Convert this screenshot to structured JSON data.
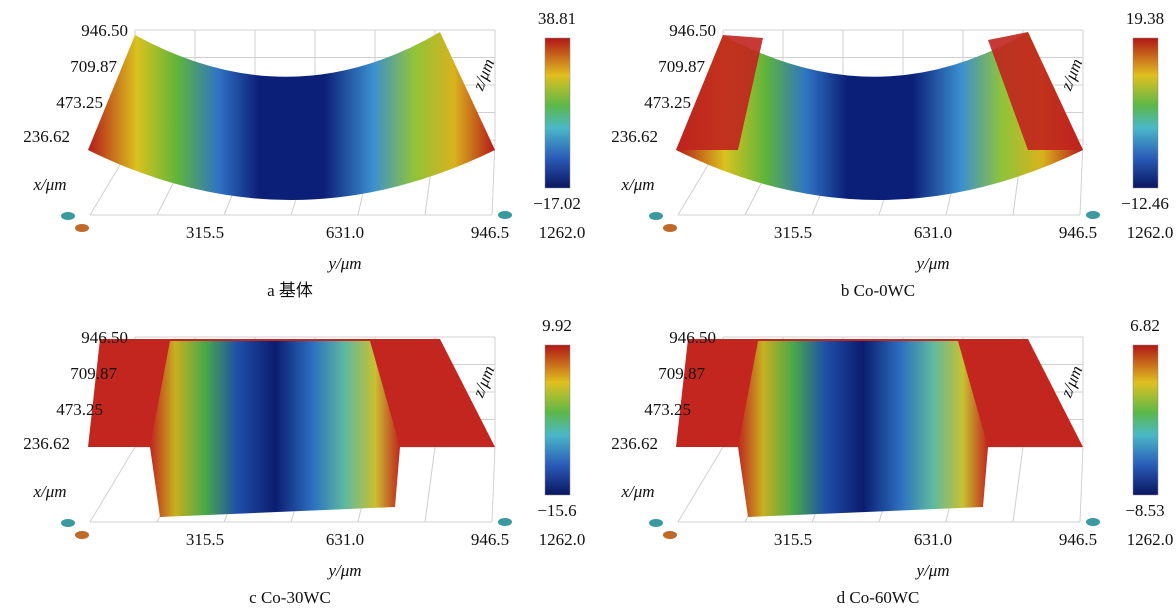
{
  "panels": [
    {
      "caption": "a 基体",
      "x_ticks": [
        "946.50",
        "709.87",
        "473.25",
        "236.62"
      ],
      "x_label": "x/μm",
      "y_ticks": [
        "315.5",
        "631.0",
        "946.5",
        "1262.0"
      ],
      "y_label": "y/μm",
      "z_label": "z/μm",
      "colorbar": {
        "max": "38.81",
        "min": "−17.02"
      }
    },
    {
      "caption": "b Co-0WC",
      "x_ticks": [
        "946.50",
        "709.87",
        "473.25",
        "236.62"
      ],
      "x_label": "x/μm",
      "y_ticks": [
        "315.5",
        "631.0",
        "946.5",
        "1262.0"
      ],
      "y_label": "y/μm",
      "z_label": "z/μm",
      "colorbar": {
        "max": "19.38",
        "min": "−12.46"
      }
    },
    {
      "caption": "c Co-30WC",
      "x_ticks": [
        "946.50",
        "709.87",
        "473.25",
        "236.62"
      ],
      "x_label": "x/μm",
      "y_ticks": [
        "315.5",
        "631.0",
        "946.5",
        "1262.0"
      ],
      "y_label": "y/μm",
      "z_label": "z/μm",
      "colorbar": {
        "max": "9.92",
        "min": "−15.6"
      }
    },
    {
      "caption": "d Co-60WC",
      "x_ticks": [
        "946.50",
        "709.87",
        "473.25",
        "236.62"
      ],
      "x_label": "x/μm",
      "y_ticks": [
        "315.5",
        "631.0",
        "946.5",
        "1262.0"
      ],
      "y_label": "y/μm",
      "z_label": "z/μm",
      "colorbar": {
        "max": "6.82",
        "min": "−8.53"
      }
    }
  ]
}
